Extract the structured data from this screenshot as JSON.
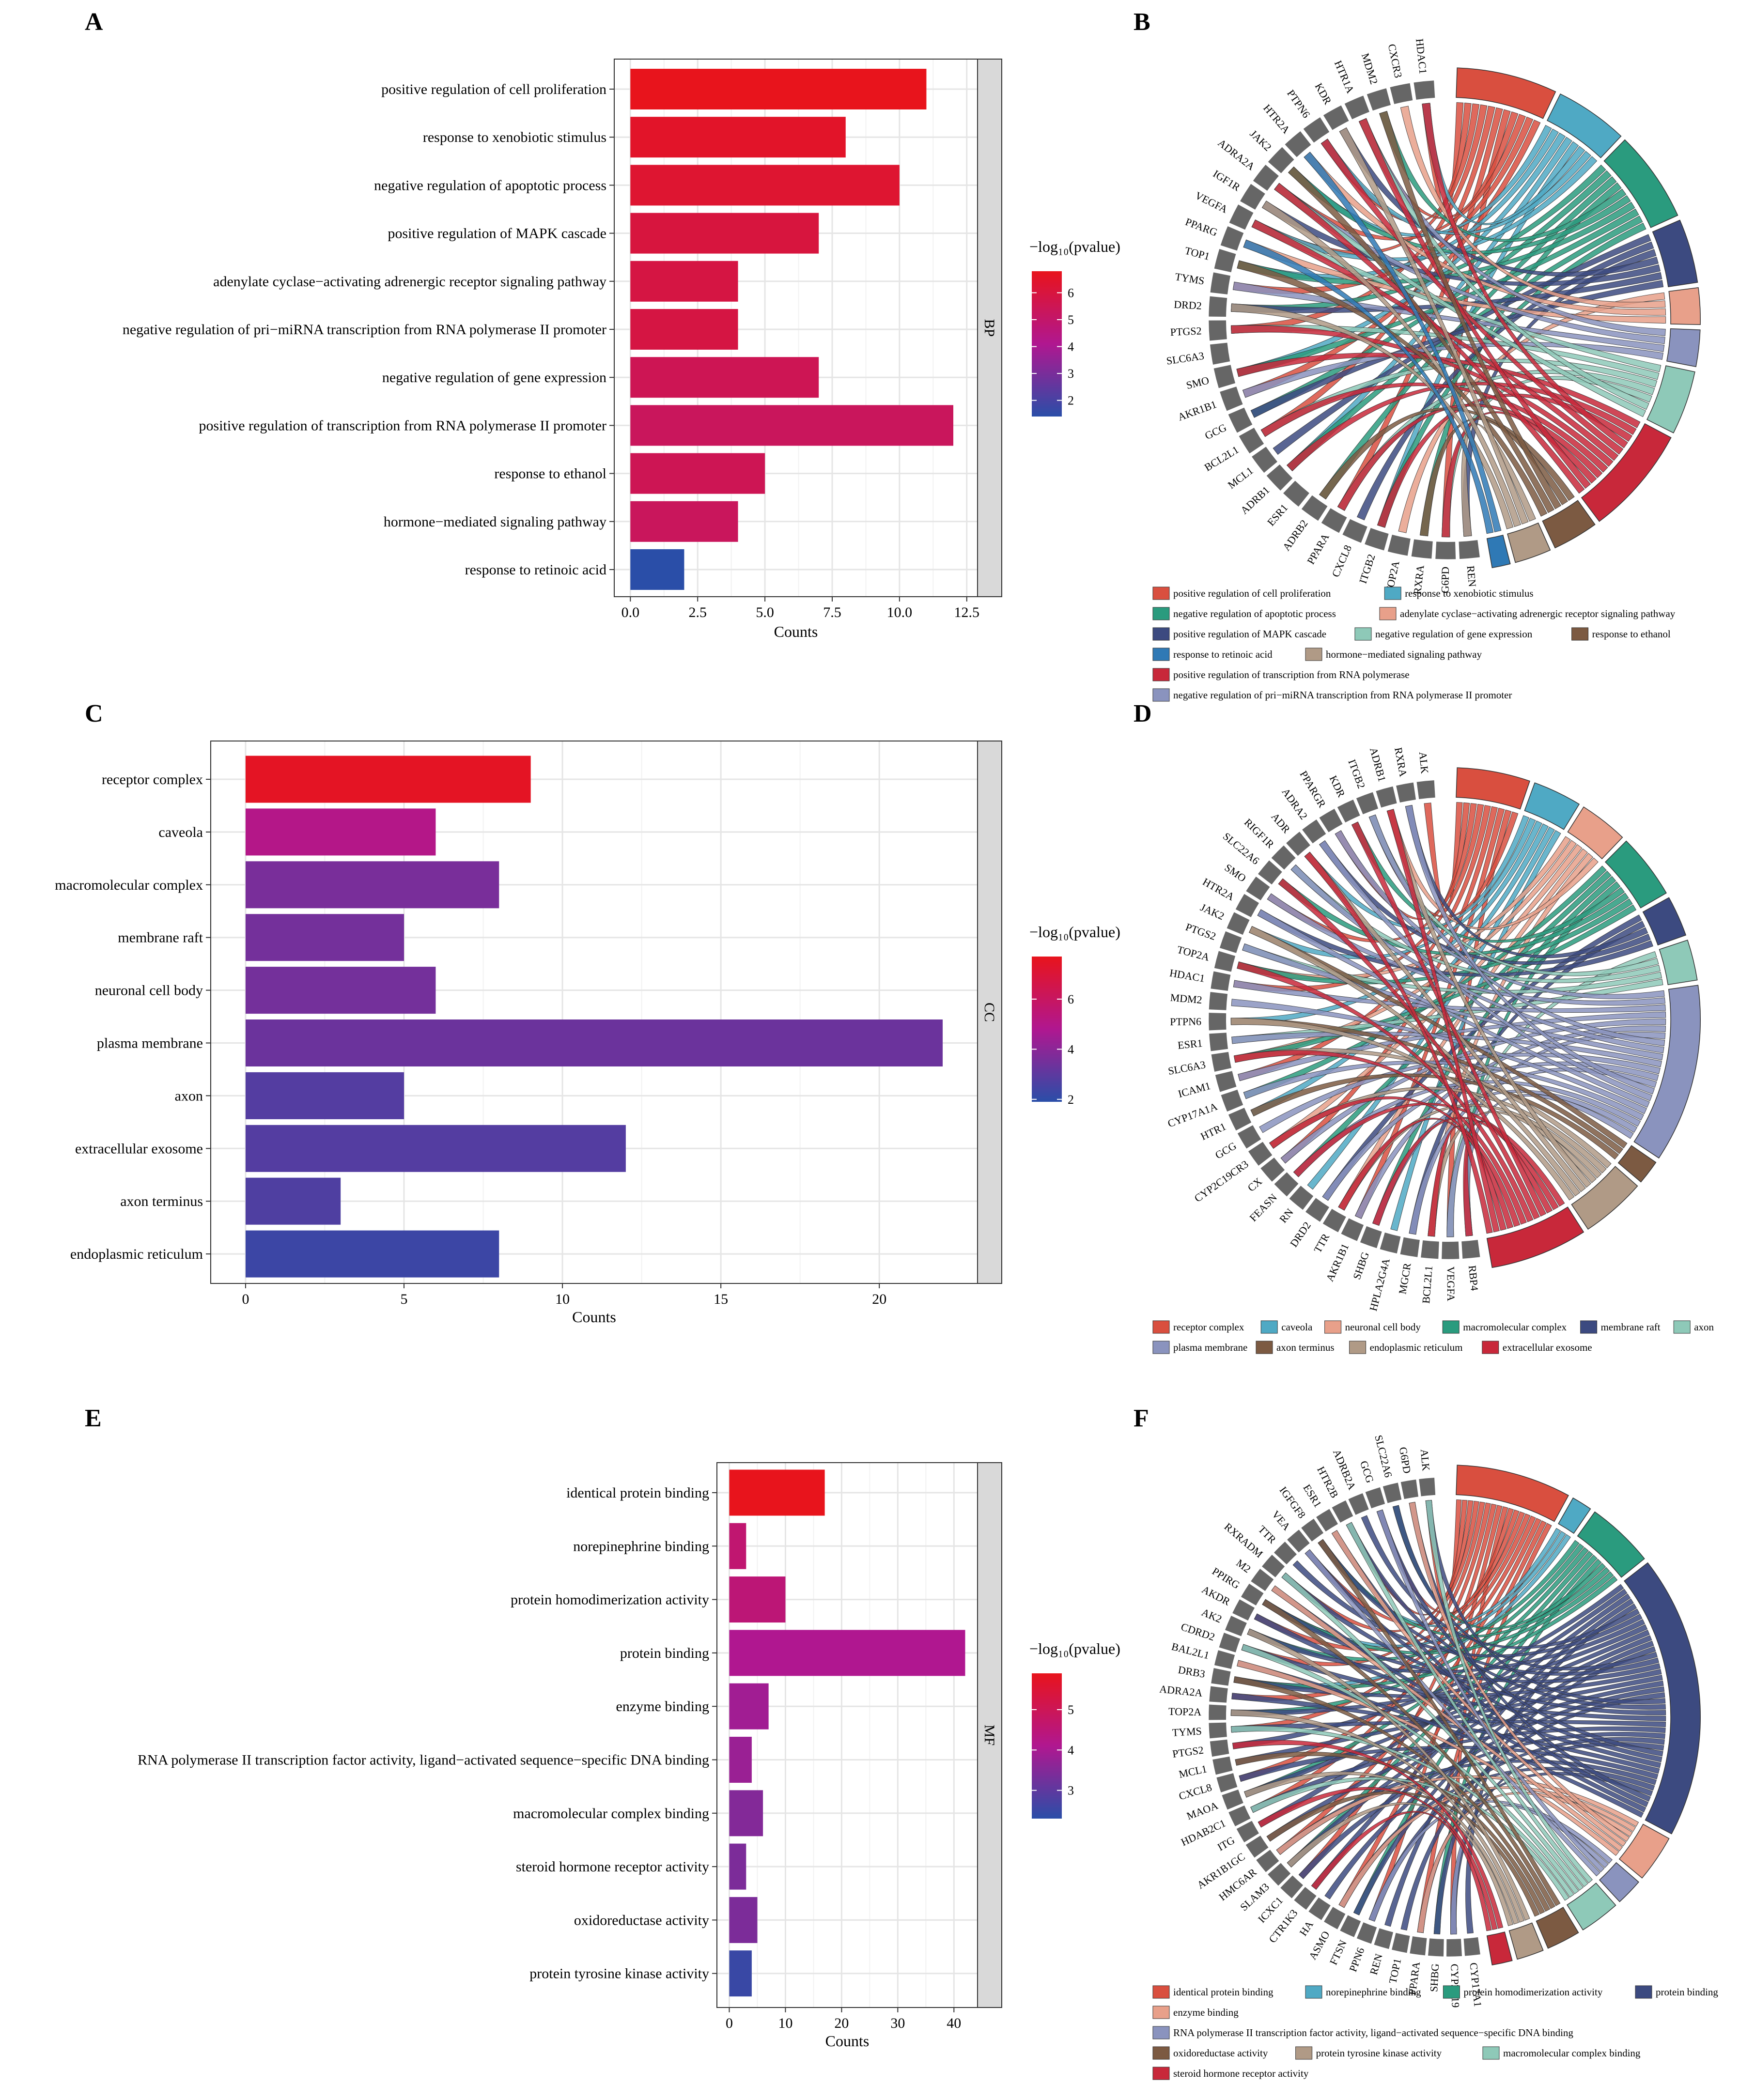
{
  "panels": {
    "A": "A",
    "B": "B",
    "C": "C",
    "D": "D",
    "E": "E",
    "F": "F"
  },
  "legend_title": "−log₁₀(pvalue)",
  "colors": {
    "low": "#2a4ea8",
    "mid": "#b01790",
    "high": "#e8141c",
    "grid": "#e5e5e5",
    "strip": "#d9d9d9",
    "gene_block": "#666666"
  },
  "chart_data": [
    {
      "id": "A",
      "type": "bar",
      "orientation": "horizontal",
      "facet": "BP",
      "xlabel": "Counts",
      "categories": [
        "positive regulation of cell proliferation",
        "response to xenobiotic stimulus",
        "negative regulation of apoptotic process",
        "positive regulation of MAPK cascade",
        "adenylate cyclase−activating adrenergic receptor signaling pathway",
        "negative regulation of pri−miRNA transcription from RNA polymerase II promoter",
        "negative regulation of gene expression",
        "positive regulation of transcription from RNA polymerase II promoter",
        "response to ethanol",
        "hormone−mediated signaling pathway",
        "response to retinoic acid"
      ],
      "values": [
        11,
        8,
        10,
        7,
        4,
        4,
        7,
        12,
        5,
        4,
        2
      ],
      "log10p": [
        6.8,
        6.5,
        6.3,
        6.0,
        5.9,
        5.9,
        5.5,
        5.3,
        5.5,
        5.3,
        1.4
      ],
      "xlim": [
        -0.6,
        12.9
      ],
      "xticks": [
        0,
        2.5,
        5,
        7.5,
        10,
        12.5
      ],
      "xtick_labels": [
        "0.0",
        "2.5",
        "5.0",
        "7.5",
        "10.0",
        "12.5"
      ],
      "colorbar": {
        "min": 1.4,
        "max": 6.8,
        "ticks": [
          2,
          3,
          4,
          5,
          6
        ],
        "labels": [
          "2",
          "3",
          "4",
          "5",
          "6"
        ]
      }
    },
    {
      "id": "C",
      "type": "bar",
      "orientation": "horizontal",
      "facet": "CC",
      "xlabel": "Counts",
      "categories": [
        "receptor complex",
        "caveola",
        "macromolecular complex",
        "membrane raft",
        "neuronal cell body",
        "plasma membrane",
        "axon",
        "extracellular exosome",
        "axon terminus",
        "endoplasmic reticulum"
      ],
      "values": [
        9,
        6,
        8,
        5,
        6,
        22,
        5,
        12,
        3,
        8
      ],
      "log10p": [
        7.5,
        5.0,
        3.6,
        3.5,
        3.5,
        3.3,
        2.8,
        2.8,
        2.7,
        2.3
      ],
      "xlim": [
        -1.1,
        23.1
      ],
      "xticks": [
        0,
        5,
        10,
        15,
        20
      ],
      "xtick_labels": [
        "0",
        "5",
        "10",
        "15",
        "20"
      ],
      "colorbar": {
        "min": 1.9,
        "max": 7.7,
        "ticks": [
          2,
          4,
          6
        ],
        "labels": [
          "2",
          "4",
          "6"
        ]
      }
    },
    {
      "id": "E",
      "type": "bar",
      "orientation": "horizontal",
      "facet": "MF",
      "xlabel": "Counts",
      "categories": [
        "identical protein binding",
        "norepinephrine binding",
        "protein homodimerization activity",
        "protein binding",
        "enzyme binding",
        "RNA polymerase II transcription factor activity, ligand−activated sequence−specific DNA binding",
        "macromolecular complex binding",
        "steroid hormone receptor activity",
        "oxidoreductase activity",
        "protein tyrosine kinase activity"
      ],
      "values": [
        17,
        3,
        10,
        42,
        7,
        4,
        6,
        3,
        5,
        4
      ],
      "log10p": [
        5.9,
        4.6,
        4.5,
        4.1,
        3.9,
        3.8,
        3.5,
        3.4,
        3.4,
        2.5
      ],
      "xlim": [
        -2.2,
        44.2
      ],
      "xticks": [
        0,
        10,
        20,
        30,
        40
      ],
      "xtick_labels": [
        "0",
        "10",
        "20",
        "30",
        "40"
      ],
      "colorbar": {
        "min": 2.3,
        "max": 5.9,
        "ticks": [
          3,
          4,
          5
        ],
        "labels": [
          "3",
          "4",
          "5"
        ]
      }
    }
  ],
  "chords": [
    {
      "id": "B",
      "genes": [
        "HDAC1",
        "CXCR3",
        "MDM2",
        "HTR1A",
        "KDR",
        "PTPN6",
        "HTR2A",
        "JAK2",
        "ADRA2A",
        "IGF1R",
        "VEGFA",
        "PPARG",
        "TOP1",
        "TYMS",
        "DRD2",
        "PTGS2",
        "SLC6A3",
        "SMO",
        "AKR1B1",
        "GCG",
        "BCL2L1",
        "MCL1",
        "ADRB1",
        "ESR1",
        "ADRB2",
        "PPARA",
        "CXCL8",
        "ITGB2",
        "TOP2A",
        "RXRA",
        "G6PD",
        "REN"
      ],
      "terms": [
        {
          "name": "positive regulation of cell proliferation",
          "color": "#d94f3f",
          "size": 11
        },
        {
          "name": "response to xenobiotic stimulus",
          "color": "#4fa9c4",
          "size": 8
        },
        {
          "name": "negative regulation of apoptotic process",
          "color": "#2a9b7e",
          "size": 10
        },
        {
          "name": "positive regulation of MAPK cascade",
          "color": "#3c4a80",
          "size": 7
        },
        {
          "name": "adenylate cyclase−activating adrenergic receptor signaling pathway",
          "color": "#e8a08a",
          "size": 4
        },
        {
          "name": "negative regulation of pri−miRNA transcription from RNA polymerase II promoter",
          "color": "#8a93be",
          "size": 4
        },
        {
          "name": "negative regulation of gene expression",
          "color": "#8ec9b8",
          "size": 7
        },
        {
          "name": "positive regulation of transcription from RNA polymerase",
          "color": "#c8283a",
          "size": 12
        },
        {
          "name": "response to ethanol",
          "color": "#7c5a42",
          "size": 5
        },
        {
          "name": "hormone−mediated signaling pathway",
          "color": "#b09a86",
          "size": 4
        },
        {
          "name": "response to retinoic acid",
          "color": "#2f79b5",
          "size": 2
        }
      ],
      "legend_order": [
        0,
        1,
        2,
        4,
        3,
        6,
        8,
        10,
        9,
        7,
        5
      ]
    },
    {
      "id": "D",
      "genes": [
        "ALK",
        "RXRA",
        "ADRB1",
        "ITGB2",
        "KDR",
        "PPARGR",
        "ADRA2",
        "ADR",
        "RIGF1R",
        "SLC22A6",
        "SMO",
        "HTR2A",
        "JAK2",
        "PTGS2",
        "TOP2A",
        "HDAC1",
        "MDM2",
        "PTPN6",
        "ESR1",
        "SLC6A3",
        "ICAM1",
        "CYP17A1A",
        "HTR1",
        "GCG",
        "CYP2C19CR3",
        "CX",
        "FEASN",
        "RN",
        "DRD2",
        "TTR",
        "AKR1B1",
        "SHBG",
        "HPLA2G4A",
        "MGCR",
        "BCL2L1",
        "VEGFA",
        "RBP4"
      ],
      "terms": [
        {
          "name": "receptor complex",
          "color": "#d94f3f",
          "size": 9
        },
        {
          "name": "caveola",
          "color": "#4fa9c4",
          "size": 6
        },
        {
          "name": "neuronal cell body",
          "color": "#e8a08a",
          "size": 6
        },
        {
          "name": "macromolecular complex",
          "color": "#2a9b7e",
          "size": 8
        },
        {
          "name": "membrane raft",
          "color": "#3c4a80",
          "size": 5
        },
        {
          "name": "axon",
          "color": "#8ec9b8",
          "size": 5
        },
        {
          "name": "plasma membrane",
          "color": "#8a93be",
          "size": 22
        },
        {
          "name": "axon terminus",
          "color": "#7c5a42",
          "size": 3
        },
        {
          "name": "endoplasmic reticulum",
          "color": "#b09a86",
          "size": 8
        },
        {
          "name": "extracellular exosome",
          "color": "#c8283a",
          "size": 12
        }
      ],
      "legend_order": [
        0,
        1,
        2,
        3,
        4,
        5,
        6,
        7,
        8,
        9
      ]
    },
    {
      "id": "F",
      "genes": [
        "ALK",
        "G6PD",
        "SLC22A6",
        "GCG",
        "ADRB2A",
        "HTR2B",
        "ESR1",
        "IGFGF8",
        "VEA",
        "TTR",
        "RXRADM",
        "M2",
        "PPIRG",
        "AKDR",
        "AK2",
        "CDRD2",
        "BAL2L1",
        "DRB3",
        "ADRA2A",
        "TOP2A",
        "TYMS",
        "PTGS2",
        "MCL1",
        "CXCL8",
        "MAOA",
        "HDAB2C1",
        "ITG",
        "AKR1B1GC",
        "HMC6AR",
        "SLAM3",
        "ICXC1",
        "CTR1K3",
        "HA",
        "ASMO",
        "FTSN",
        "PPN6",
        "REN",
        "TOP1",
        "PPARA",
        "SHBG",
        "CYP2C19",
        "CYP17A1"
      ],
      "terms": [
        {
          "name": "identical protein binding",
          "color": "#d94f3f",
          "size": 17
        },
        {
          "name": "norepinephrine binding",
          "color": "#4fa9c4",
          "size": 3
        },
        {
          "name": "protein homodimerization activity",
          "color": "#2a9b7e",
          "size": 10
        },
        {
          "name": "protein binding",
          "color": "#3c4a80",
          "size": 42
        },
        {
          "name": "enzyme binding",
          "color": "#e8a08a",
          "size": 7
        },
        {
          "name": "RNA polymerase II transcription factor activity, ligand−activated sequence−specific DNA binding",
          "color": "#8a93be",
          "size": 4
        },
        {
          "name": "macromolecular complex binding",
          "color": "#8ec9b8",
          "size": 6
        },
        {
          "name": "oxidoreductase activity",
          "color": "#7c5a42",
          "size": 5
        },
        {
          "name": "protein tyrosine kinase activity",
          "color": "#b09a86",
          "size": 4
        },
        {
          "name": "steroid hormone receptor activity",
          "color": "#c8283a",
          "size": 3
        }
      ],
      "legend_order": [
        0,
        1,
        2,
        3,
        4,
        5,
        7,
        8,
        6,
        9
      ]
    }
  ]
}
